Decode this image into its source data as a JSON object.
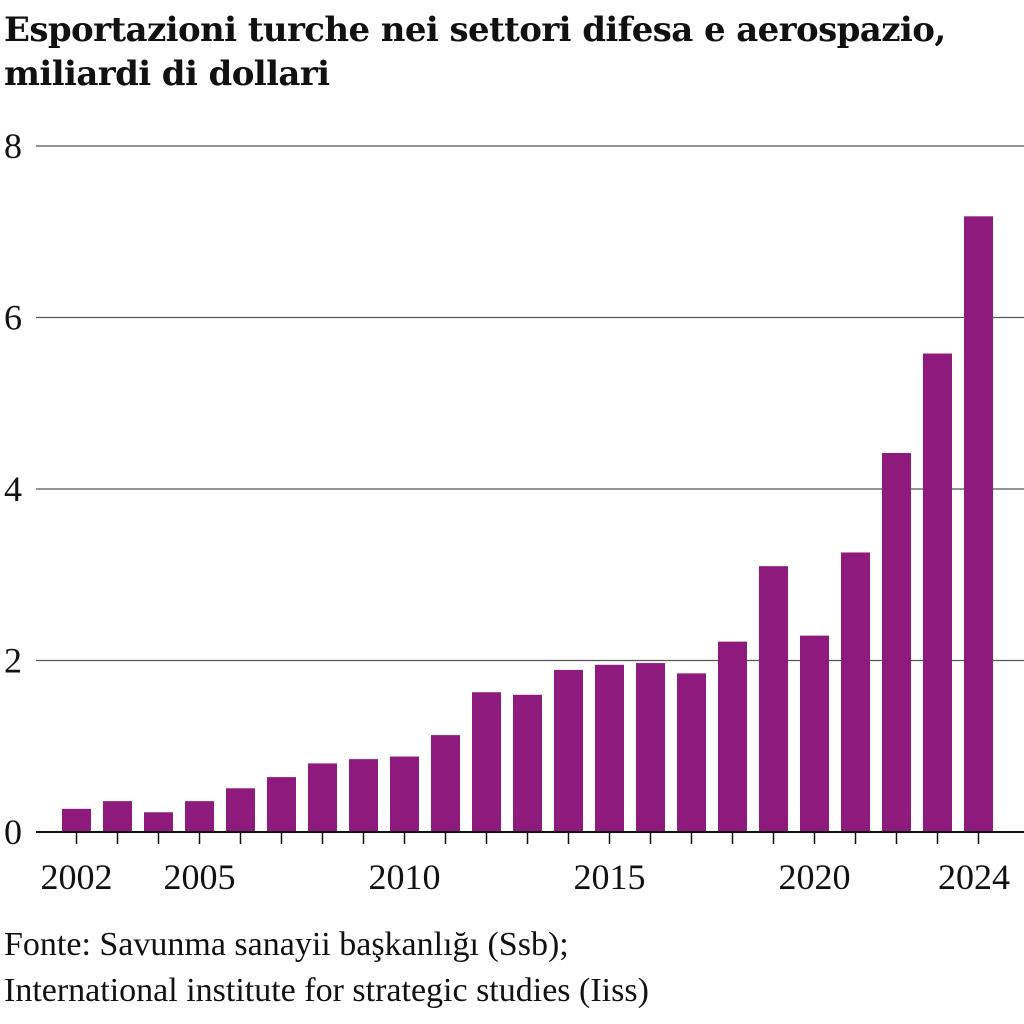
{
  "chart_data": {
    "type": "bar",
    "title_lines": [
      "Esportazioni turche nei settori difesa e aerospazio,",
      "miliardi di dollari"
    ],
    "x": [
      2002,
      2003,
      2004,
      2005,
      2006,
      2007,
      2008,
      2009,
      2010,
      2011,
      2012,
      2013,
      2014,
      2015,
      2016,
      2017,
      2018,
      2019,
      2020,
      2021,
      2022,
      2023,
      2024
    ],
    "values": [
      0.27,
      0.36,
      0.23,
      0.36,
      0.51,
      0.64,
      0.8,
      0.85,
      0.88,
      1.13,
      1.63,
      1.6,
      1.89,
      1.95,
      1.97,
      1.85,
      2.22,
      3.1,
      2.29,
      3.26,
      4.42,
      5.58,
      7.18
    ],
    "x_tick_labels": [
      "2002",
      "2005",
      "2010",
      "2015",
      "2020",
      "2024"
    ],
    "x_tick_values": [
      2002,
      2005,
      2010,
      2015,
      2020,
      2024
    ],
    "y_tick_labels": [
      "0",
      "2",
      "4",
      "6",
      "8"
    ],
    "ylim": [
      0,
      8
    ],
    "grid": true,
    "bar_color": "#8e1a7e",
    "gridline_color": "#555555",
    "source_lines": [
      "Fonte: Savunma sanayii başkanlığı (Ssb);",
      "International institute for strategic studies (Iiss)"
    ]
  }
}
